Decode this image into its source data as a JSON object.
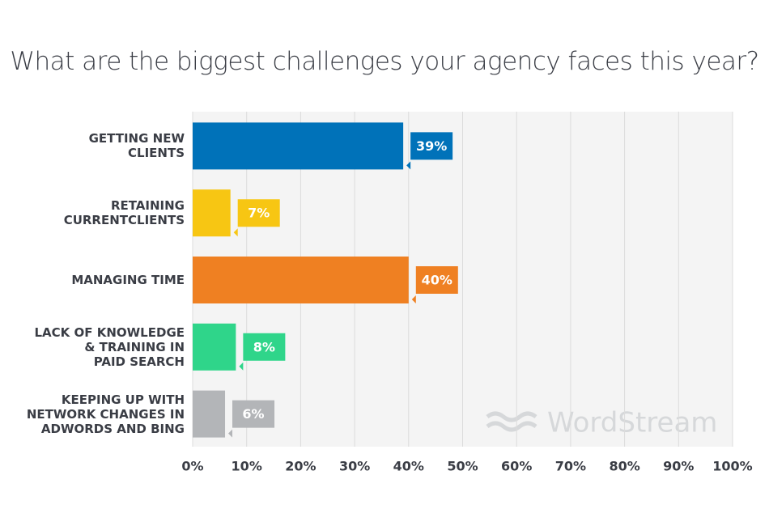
{
  "chart_data": {
    "type": "bar",
    "orientation": "horizontal",
    "title": "What are the biggest challenges your agency faces this year?",
    "categories": [
      "GETTING NEW\nCLIENTS",
      "RETAINING\nCURRENTCLIENTS",
      "MANAGING TIME",
      "LACK OF KNOWLEDGE\n& TRAINING IN\nPAID SEARCH",
      "KEEPING UP WITH\nNETWORK CHANGES IN\nADWORDS AND BING"
    ],
    "values": [
      39,
      7,
      40,
      8,
      6
    ],
    "value_labels": [
      "39%",
      "7%",
      "40%",
      "8%",
      "6%"
    ],
    "colors": [
      "#0072b9",
      "#f7c613",
      "#ef8022",
      "#2fd58a",
      "#b3b5b8"
    ],
    "xlim": [
      0,
      100
    ],
    "xticks": [
      {
        "value": 0,
        "label": "0%"
      },
      {
        "value": 10,
        "label": "10%"
      },
      {
        "value": 20,
        "label": "20%"
      },
      {
        "value": 30,
        "label": "30%"
      },
      {
        "value": 40,
        "label": "40%"
      },
      {
        "value": 50,
        "label": "50%"
      },
      {
        "value": 60,
        "label": "60%"
      },
      {
        "value": 70,
        "label": "70%"
      },
      {
        "value": 80,
        "label": "80%"
      },
      {
        "value": 90,
        "label": "90%"
      },
      {
        "value": 100,
        "label": "100%"
      }
    ],
    "grid": true,
    "watermark": "WordStream"
  }
}
